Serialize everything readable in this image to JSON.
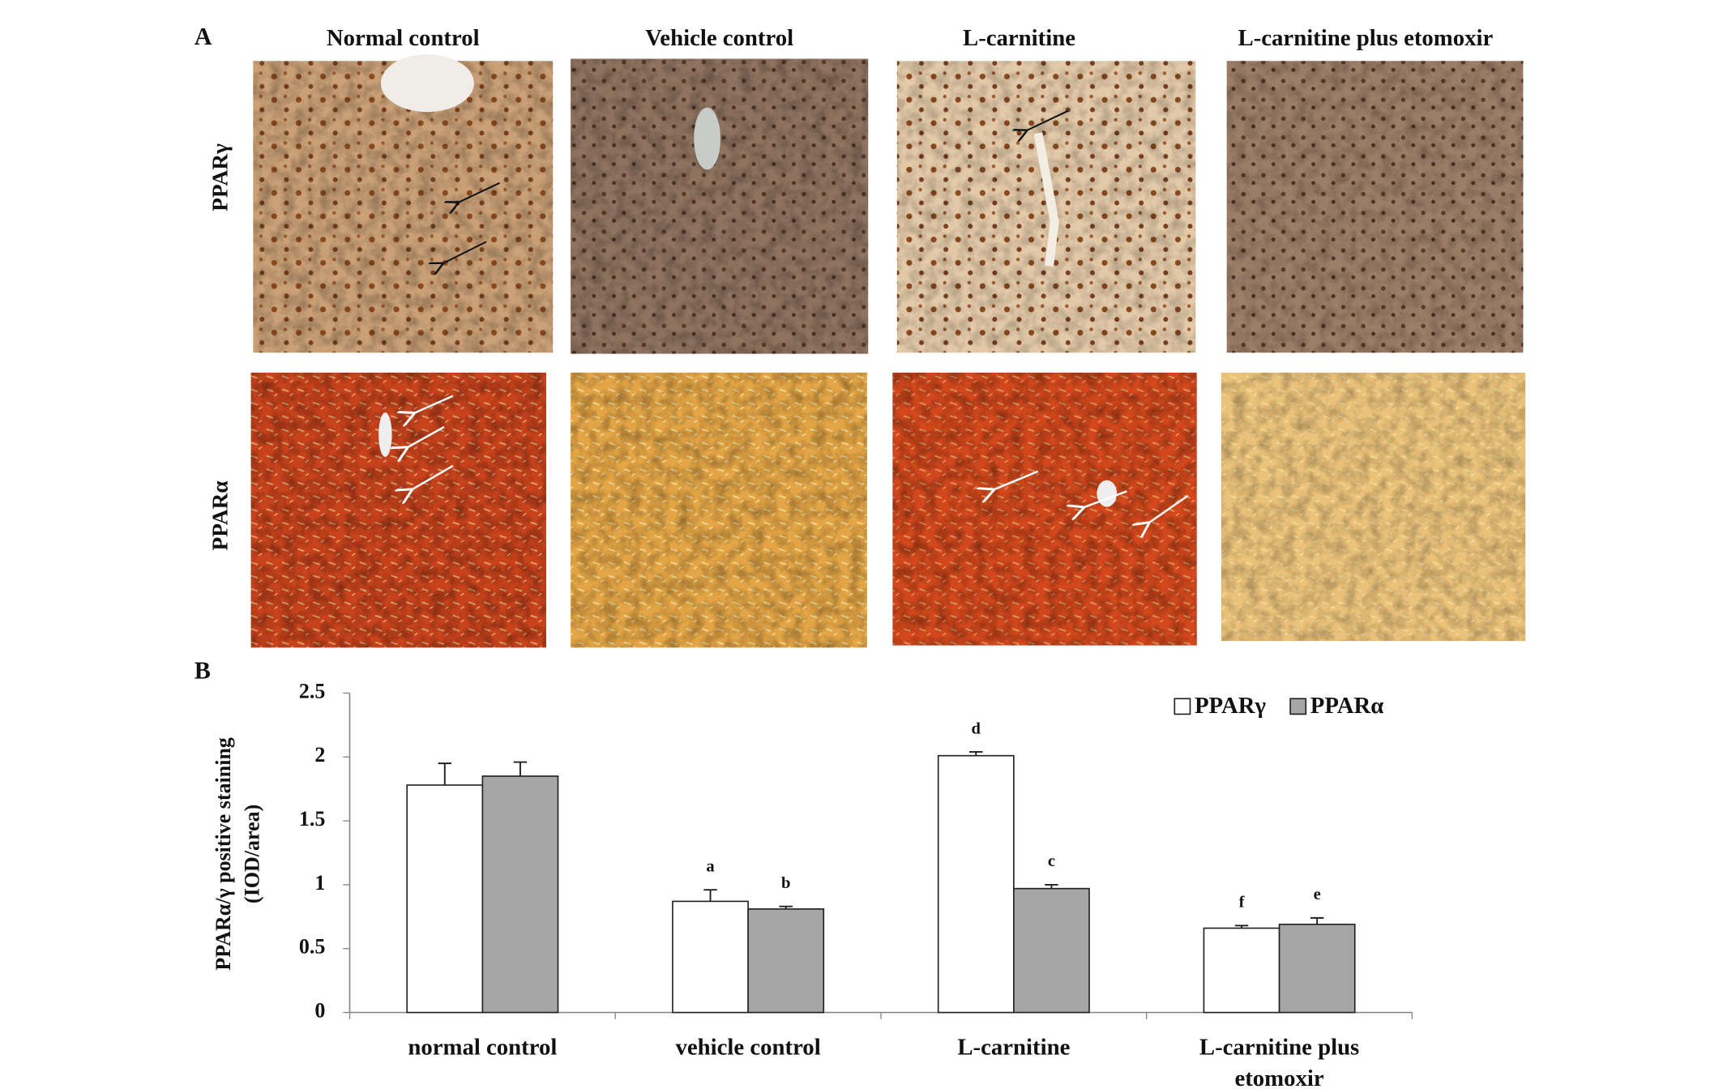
{
  "panel_a": {
    "label": "A",
    "columns": [
      "Normal control",
      "Vehicle control",
      "L-carnitine",
      "L-carnitine plus etomoxir"
    ],
    "rows": [
      "PPARγ",
      "PPARα"
    ]
  },
  "chart_data": {
    "type": "bar",
    "label": "B",
    "categories": [
      "normal control",
      "vehicle control",
      "L-carnitine",
      "L-carnitine plus etomoxir"
    ],
    "ylabel": [
      "PPARα/γ positive staining",
      "(IOD/area)"
    ],
    "ylim": [
      0,
      2.5
    ],
    "yticks": [
      0,
      0.5,
      1,
      1.5,
      2,
      2.5
    ],
    "legend": "top-right",
    "series": [
      {
        "name": "PPARγ",
        "color": "#ffffff",
        "values": [
          1.78,
          0.87,
          2.01,
          0.66
        ],
        "errors": [
          0.17,
          0.09,
          0.03,
          0.02
        ],
        "annotations": [
          null,
          "a",
          "d",
          "f"
        ]
      },
      {
        "name": "PPARα",
        "color": "#a6a6a6",
        "values": [
          1.85,
          0.81,
          0.97,
          0.69
        ],
        "errors": [
          0.11,
          0.02,
          0.03,
          0.05
        ],
        "annotations": [
          null,
          "b",
          "c",
          "e"
        ]
      }
    ]
  }
}
